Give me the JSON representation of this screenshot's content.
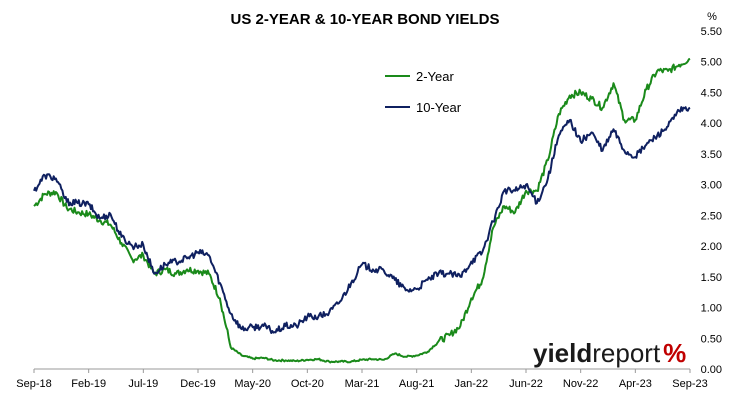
{
  "brand": {
    "logo_bold": "yield",
    "logo_regular": "report",
    "logo_symbol": "%",
    "symbol_color": "#c00000"
  },
  "chart_data": {
    "type": "line",
    "title": "US 2-YEAR & 10-YEAR BOND YIELDS",
    "unit": "%",
    "xlabel": "",
    "ylabel": "",
    "ylim": [
      0,
      5.5
    ],
    "y_ticks": [
      "0.00",
      "0.50",
      "1.00",
      "1.50",
      "2.00",
      "2.50",
      "3.00",
      "3.50",
      "4.00",
      "4.50",
      "5.00",
      "5.50"
    ],
    "x_ticks": [
      "Sep-18",
      "Feb-19",
      "Jul-19",
      "Dec-19",
      "May-20",
      "Oct-20",
      "Mar-21",
      "Aug-21",
      "Jan-22",
      "Jun-22",
      "Nov-22",
      "Apr-23",
      "Sep-23"
    ],
    "x_range": [
      "Sep-18",
      "Sep-23"
    ],
    "grid": false,
    "legend_position": "top-center",
    "series": [
      {
        "name": "2-Year",
        "color": "#1a8a1a",
        "x": [
          "2018-09",
          "2018-10",
          "2018-11",
          "2018-12",
          "2019-01",
          "2019-02",
          "2019-03",
          "2019-04",
          "2019-05",
          "2019-06",
          "2019-07",
          "2019-08",
          "2019-09",
          "2019-10",
          "2019-11",
          "2019-12",
          "2020-01",
          "2020-02",
          "2020-03",
          "2020-04",
          "2020-05",
          "2020-06",
          "2020-07",
          "2020-08",
          "2020-09",
          "2020-10",
          "2020-11",
          "2020-12",
          "2021-01",
          "2021-02",
          "2021-03",
          "2021-04",
          "2021-05",
          "2021-06",
          "2021-07",
          "2021-08",
          "2021-09",
          "2021-10",
          "2021-11",
          "2021-12",
          "2022-01",
          "2022-02",
          "2022-03",
          "2022-04",
          "2022-05",
          "2022-06",
          "2022-07",
          "2022-08",
          "2022-09",
          "2022-10",
          "2022-11",
          "2022-12",
          "2023-01",
          "2023-02",
          "2023-03",
          "2023-04",
          "2023-05",
          "2023-06",
          "2023-07",
          "2023-08",
          "2023-09"
        ],
        "values": [
          2.65,
          2.85,
          2.88,
          2.62,
          2.55,
          2.52,
          2.42,
          2.35,
          2.05,
          1.78,
          1.85,
          1.55,
          1.62,
          1.55,
          1.62,
          1.6,
          1.55,
          1.15,
          0.35,
          0.22,
          0.17,
          0.18,
          0.14,
          0.14,
          0.13,
          0.15,
          0.16,
          0.12,
          0.12,
          0.12,
          0.15,
          0.16,
          0.15,
          0.25,
          0.2,
          0.22,
          0.28,
          0.45,
          0.55,
          0.7,
          1.15,
          1.45,
          2.3,
          2.65,
          2.55,
          2.9,
          2.9,
          3.4,
          4.15,
          4.45,
          4.5,
          4.4,
          4.25,
          4.65,
          4.05,
          4.05,
          4.55,
          4.85,
          4.85,
          4.95,
          5.05
        ]
      },
      {
        "name": "10-Year",
        "color": "#0f2060",
        "x": [
          "2018-09",
          "2018-10",
          "2018-11",
          "2018-12",
          "2019-01",
          "2019-02",
          "2019-03",
          "2019-04",
          "2019-05",
          "2019-06",
          "2019-07",
          "2019-08",
          "2019-09",
          "2019-10",
          "2019-11",
          "2019-12",
          "2020-01",
          "2020-02",
          "2020-03",
          "2020-04",
          "2020-05",
          "2020-06",
          "2020-07",
          "2020-08",
          "2020-09",
          "2020-10",
          "2020-11",
          "2020-12",
          "2021-01",
          "2021-02",
          "2021-03",
          "2021-04",
          "2021-05",
          "2021-06",
          "2021-07",
          "2021-08",
          "2021-09",
          "2021-10",
          "2021-11",
          "2021-12",
          "2022-01",
          "2022-02",
          "2022-03",
          "2022-04",
          "2022-05",
          "2022-06",
          "2022-07",
          "2022-08",
          "2022-09",
          "2022-10",
          "2022-11",
          "2022-12",
          "2023-01",
          "2023-02",
          "2023-03",
          "2023-04",
          "2023-05",
          "2023-06",
          "2023-07",
          "2023-08",
          "2023-09"
        ],
        "values": [
          2.9,
          3.15,
          3.1,
          2.72,
          2.7,
          2.68,
          2.45,
          2.52,
          2.15,
          2.0,
          2.02,
          1.55,
          1.7,
          1.75,
          1.8,
          1.9,
          1.85,
          1.4,
          0.9,
          0.65,
          0.68,
          0.7,
          0.6,
          0.7,
          0.7,
          0.85,
          0.85,
          0.92,
          1.1,
          1.4,
          1.7,
          1.62,
          1.6,
          1.45,
          1.28,
          1.3,
          1.45,
          1.55,
          1.55,
          1.5,
          1.75,
          1.9,
          2.4,
          2.9,
          2.9,
          3.0,
          2.7,
          3.1,
          3.8,
          4.05,
          3.7,
          3.85,
          3.55,
          3.9,
          3.55,
          3.45,
          3.65,
          3.8,
          3.95,
          4.2,
          4.25
        ]
      }
    ]
  }
}
